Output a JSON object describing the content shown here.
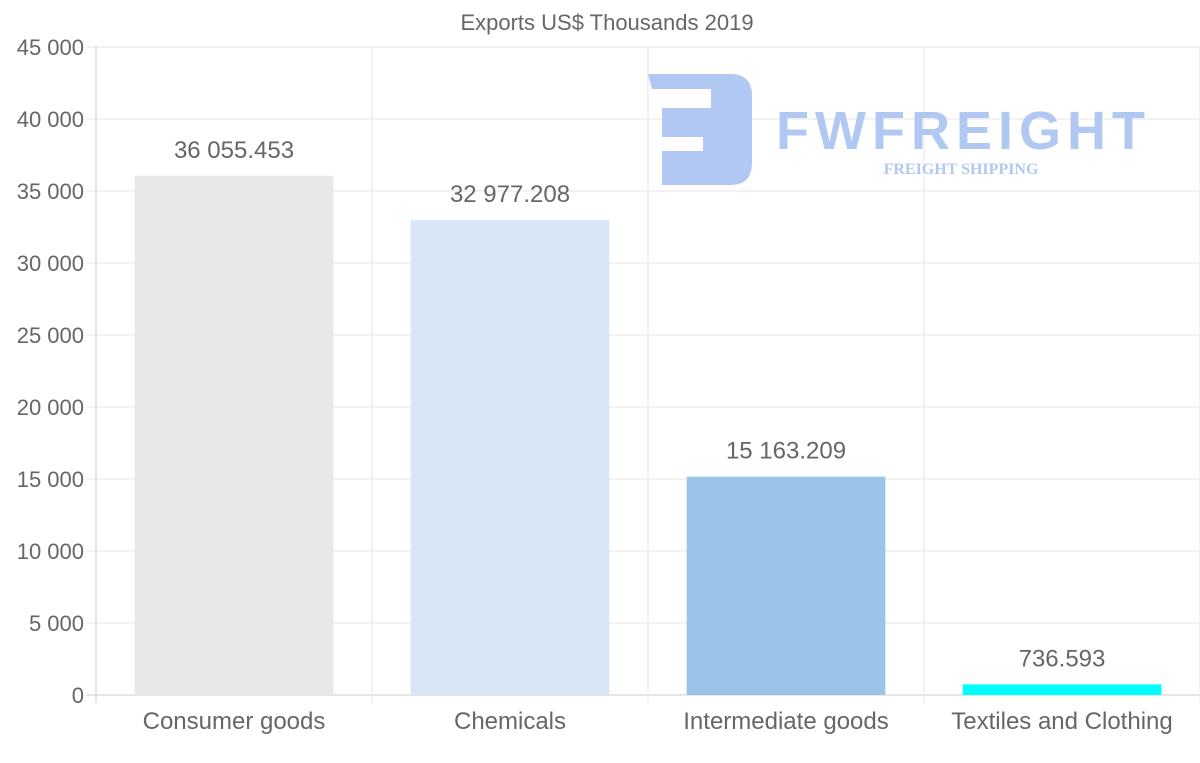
{
  "chart_data": {
    "type": "bar",
    "title": "Exports US$ Thousands 2019",
    "categories": [
      "Consumer goods",
      "Chemicals",
      "Intermediate goods",
      "Textiles and Clothing"
    ],
    "values": [
      36055.453,
      32977.208,
      15163.209,
      736.593
    ],
    "data_labels": [
      "36 055.453",
      "32 977.208",
      "15 163.209",
      "736.593"
    ],
    "colors": [
      "#e8e8e8",
      "#d8e7f8",
      "#9cc4e8",
      "#00ffff"
    ],
    "ylim": [
      0,
      45000
    ],
    "yticks": [
      0,
      5000,
      10000,
      15000,
      20000,
      25000,
      30000,
      35000,
      40000,
      45000
    ],
    "ytick_labels": [
      "0",
      "5 000",
      "10 000",
      "15 000",
      "20 000",
      "25 000",
      "30 000",
      "35 000",
      "40 000",
      "45 000"
    ],
    "xlabel": "",
    "ylabel": "",
    "grid": true,
    "legend": "none"
  },
  "watermark": {
    "brand": "FWFREIGHT",
    "tagline": "FREIGHT SHIPPING",
    "color": "#b0c8f2"
  }
}
